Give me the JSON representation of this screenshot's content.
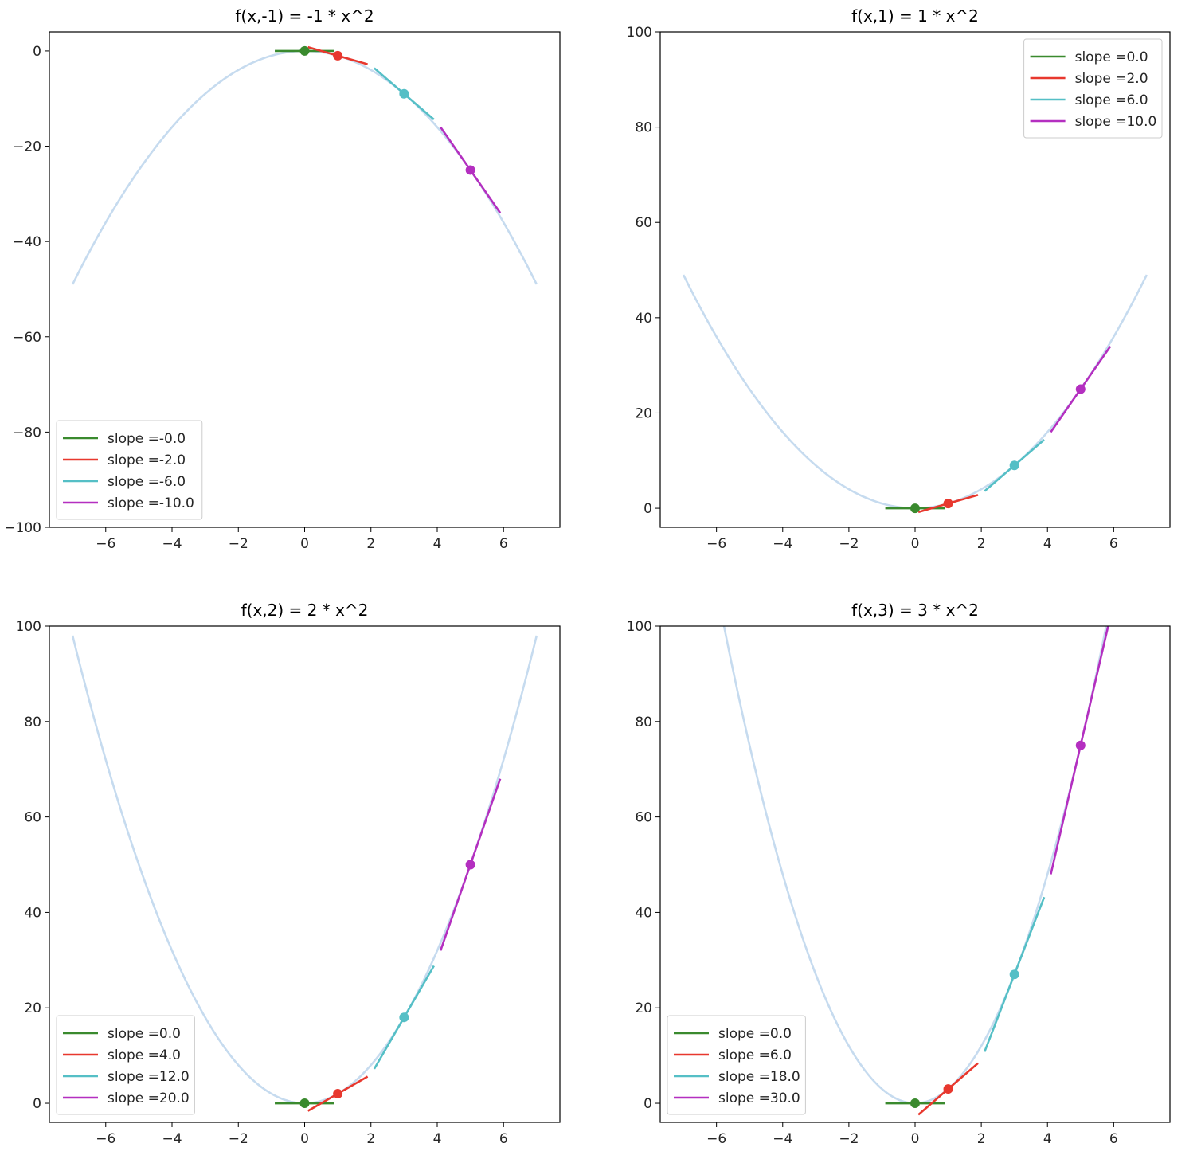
{
  "colors": {
    "curve": "#c6dbef",
    "series": [
      "#3a8a2e",
      "#e8382e",
      "#55bfc6",
      "#b42fc0"
    ]
  },
  "chart_data": [
    {
      "type": "line",
      "title": "f(x,-1) = -1 * x^2",
      "coefficient": -1,
      "xlim": [
        -7.7,
        7.7
      ],
      "ylim": [
        -100,
        4
      ],
      "xticks": [
        -6,
        -4,
        -2,
        0,
        2,
        4,
        6
      ],
      "xtick_labels": [
        "−6",
        "−4",
        "−2",
        "0",
        "2",
        "4",
        "6"
      ],
      "yticks": [
        0,
        -20,
        -40,
        -60,
        -80,
        -100
      ],
      "ytick_labels": [
        "0",
        "−20",
        "−40",
        "−60",
        "−80",
        "−100"
      ],
      "curve_x_range": [
        -7,
        7
      ],
      "legend_position": "lower-left",
      "series": [
        {
          "name": "slope =-0.0",
          "point": [
            0,
            0
          ],
          "slope": -0.0
        },
        {
          "name": "slope =-2.0",
          "point": [
            1,
            -1
          ],
          "slope": -2.0
        },
        {
          "name": "slope =-6.0",
          "point": [
            3,
            -9
          ],
          "slope": -6.0
        },
        {
          "name": "slope =-10.0",
          "point": [
            5,
            -25
          ],
          "slope": -10.0
        }
      ]
    },
    {
      "type": "line",
      "title": "f(x,1) = 1 * x^2",
      "coefficient": 1,
      "xlim": [
        -7.7,
        7.7
      ],
      "ylim": [
        -4,
        100
      ],
      "xticks": [
        -6,
        -4,
        -2,
        0,
        2,
        4,
        6
      ],
      "xtick_labels": [
        "−6",
        "−4",
        "−2",
        "0",
        "2",
        "4",
        "6"
      ],
      "yticks": [
        0,
        20,
        40,
        60,
        80,
        100
      ],
      "ytick_labels": [
        "0",
        "20",
        "40",
        "60",
        "80",
        "100"
      ],
      "curve_x_range": [
        -7,
        7
      ],
      "legend_position": "upper-right",
      "series": [
        {
          "name": "slope =0.0",
          "point": [
            0,
            0
          ],
          "slope": 0.0
        },
        {
          "name": "slope =2.0",
          "point": [
            1,
            1
          ],
          "slope": 2.0
        },
        {
          "name": "slope =6.0",
          "point": [
            3,
            9
          ],
          "slope": 6.0
        },
        {
          "name": "slope =10.0",
          "point": [
            5,
            25
          ],
          "slope": 10.0
        }
      ]
    },
    {
      "type": "line",
      "title": "f(x,2) = 2 * x^2",
      "coefficient": 2,
      "xlim": [
        -7.7,
        7.7
      ],
      "ylim": [
        -4,
        100
      ],
      "xticks": [
        -6,
        -4,
        -2,
        0,
        2,
        4,
        6
      ],
      "xtick_labels": [
        "−6",
        "−4",
        "−2",
        "0",
        "2",
        "4",
        "6"
      ],
      "yticks": [
        0,
        20,
        40,
        60,
        80,
        100
      ],
      "ytick_labels": [
        "0",
        "20",
        "40",
        "60",
        "80",
        "100"
      ],
      "curve_x_range": [
        -7,
        7
      ],
      "legend_position": "lower-left",
      "series": [
        {
          "name": "slope =0.0",
          "point": [
            0,
            0
          ],
          "slope": 0.0
        },
        {
          "name": "slope =4.0",
          "point": [
            1,
            2
          ],
          "slope": 4.0
        },
        {
          "name": "slope =12.0",
          "point": [
            3,
            18
          ],
          "slope": 12.0
        },
        {
          "name": "slope =20.0",
          "point": [
            5,
            50
          ],
          "slope": 20.0
        }
      ]
    },
    {
      "type": "line",
      "title": "f(x,3) = 3 * x^2",
      "coefficient": 3,
      "xlim": [
        -7.7,
        7.7
      ],
      "ylim": [
        -4,
        100
      ],
      "xticks": [
        -6,
        -4,
        -2,
        0,
        2,
        4,
        6
      ],
      "xtick_labels": [
        "−6",
        "−4",
        "−2",
        "0",
        "2",
        "4",
        "6"
      ],
      "yticks": [
        0,
        20,
        40,
        60,
        80,
        100
      ],
      "ytick_labels": [
        "0",
        "20",
        "40",
        "60",
        "80",
        "100"
      ],
      "curve_x_range": [
        -7,
        7
      ],
      "legend_position": "lower-left",
      "series": [
        {
          "name": "slope =0.0",
          "point": [
            0,
            0
          ],
          "slope": 0.0
        },
        {
          "name": "slope =6.0",
          "point": [
            1,
            3
          ],
          "slope": 6.0
        },
        {
          "name": "slope =18.0",
          "point": [
            3,
            27
          ],
          "slope": 18.0
        },
        {
          "name": "slope =30.0",
          "point": [
            5,
            75
          ],
          "slope": 30.0
        }
      ]
    }
  ]
}
